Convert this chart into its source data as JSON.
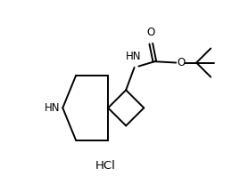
{
  "background_color": "#ffffff",
  "line_color": "#000000",
  "text_color": "#000000",
  "line_width": 1.4,
  "font_size": 8.5,
  "hcl_font_size": 9.5,
  "figsize": [
    2.69,
    2.16
  ],
  "dpi": 100,
  "xlim": [
    0,
    10
  ],
  "ylim": [
    0,
    8
  ]
}
